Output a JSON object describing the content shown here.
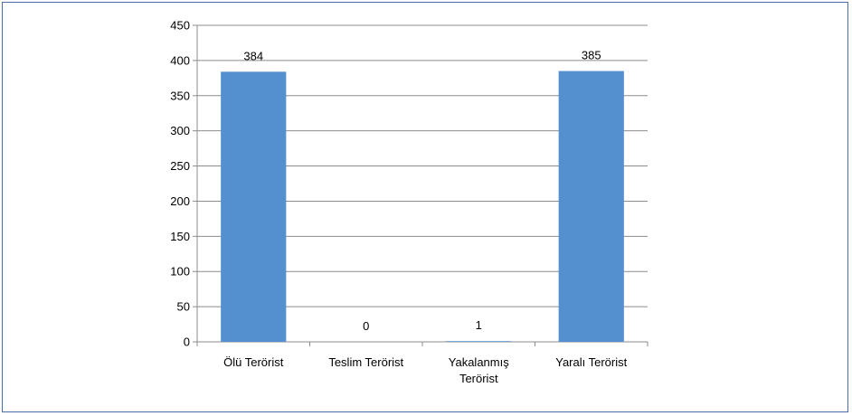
{
  "chart_data": {
    "type": "bar",
    "categories": [
      [
        "Ölü Terörist"
      ],
      [
        "Teslim Terörist"
      ],
      [
        "Yakalanmış",
        "Terörist"
      ],
      [
        "Yaralı Terörist"
      ]
    ],
    "values": [
      384,
      0,
      1,
      385
    ],
    "data_labels": [
      "384",
      "0",
      "1",
      "385"
    ],
    "ylim": [
      0,
      450
    ],
    "yticks": [
      0,
      50,
      100,
      150,
      200,
      250,
      300,
      350,
      400,
      450
    ],
    "bar_color": "#5490d0",
    "grid": true,
    "legend": "none"
  }
}
